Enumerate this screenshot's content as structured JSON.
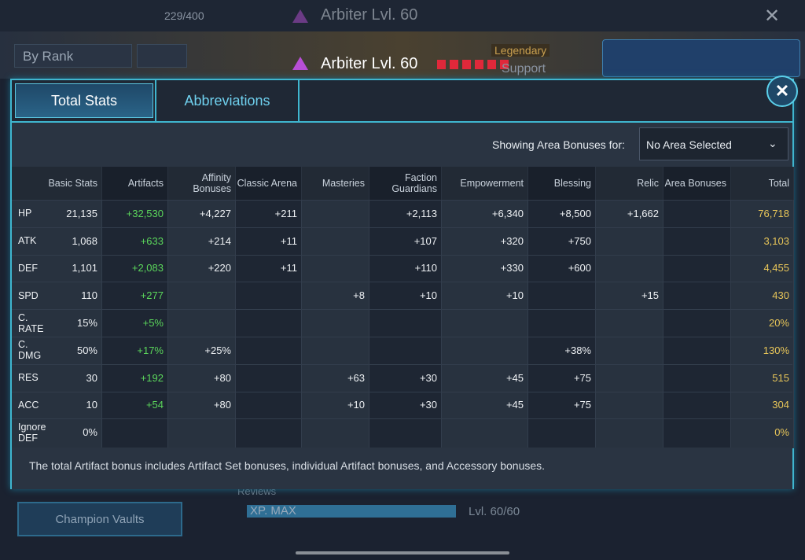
{
  "background": {
    "roster_count": "229/400",
    "champion_title": "Arbiter Lvl. 60",
    "sort": "By Rank",
    "rarity": "Legendary",
    "role": "Support",
    "reviews": "Reviews",
    "xp": "XP. MAX",
    "level": "Lvl. 60/60",
    "vaults": "Champion Vaults"
  },
  "modal": {
    "tabs": [
      "Total Stats",
      "Abbreviations"
    ],
    "area_label": "Showing Area Bonuses for:",
    "area_select": "No Area Selected",
    "table": {
      "headers": [
        "Basic Stats",
        "Artifacts",
        "Affinity Bonuses",
        "Classic Arena",
        "Masteries",
        "Faction Guardians",
        "Empowerment",
        "Blessing",
        "Relic",
        "Area Bonuses",
        "Total"
      ],
      "rows": [
        [
          "HP",
          "21,135",
          "+32,530",
          "+4,227",
          "+211",
          null,
          "+2,113",
          "+6,340",
          "+8,500",
          "+1,662",
          null,
          "76,718"
        ],
        [
          "ATK",
          "1,068",
          "+633",
          "+214",
          "+11",
          null,
          "+107",
          "+320",
          "+750",
          null,
          null,
          "3,103"
        ],
        [
          "DEF",
          "1,101",
          "+2,083",
          "+220",
          "+11",
          null,
          "+110",
          "+330",
          "+600",
          null,
          null,
          "4,455"
        ],
        [
          "SPD",
          "110",
          "+277",
          null,
          null,
          "+8",
          "+10",
          "+10",
          null,
          "+15",
          null,
          "430"
        ],
        [
          "C. RATE",
          "15%",
          "+5%",
          null,
          null,
          null,
          null,
          null,
          null,
          null,
          null,
          "20%"
        ],
        [
          "C. DMG",
          "50%",
          "+17%",
          "+25%",
          null,
          null,
          null,
          null,
          "+38%",
          null,
          null,
          "130%"
        ],
        [
          "RES",
          "30",
          "+192",
          "+80",
          null,
          "+63",
          "+30",
          "+45",
          "+75",
          null,
          null,
          "515"
        ],
        [
          "ACC",
          "10",
          "+54",
          "+80",
          null,
          "+10",
          "+30",
          "+45",
          "+75",
          null,
          null,
          "304"
        ],
        [
          "Ignore DEF",
          "0%",
          null,
          null,
          null,
          null,
          null,
          null,
          null,
          null,
          null,
          "0%"
        ]
      ]
    },
    "footnote": "The total Artifact bonus includes Artifact Set bonuses, individual Artifact bonuses, and Accessory bonuses."
  }
}
